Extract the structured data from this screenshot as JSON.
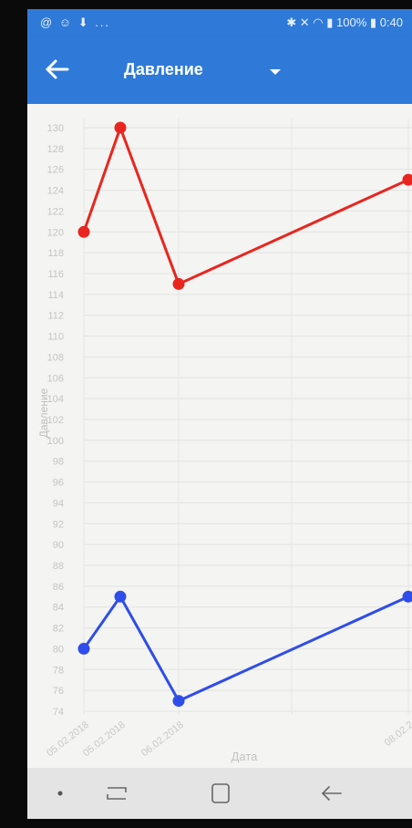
{
  "status_bar": {
    "left_icons": "@ ☺ ⬇ ...",
    "battery": "100%",
    "time": "0:40"
  },
  "app_bar": {
    "title": "Давление",
    "back_icon": "arrow-left-icon",
    "dropdown_icon": "caret-down-icon",
    "color": "#2f7ad8"
  },
  "chart_data": {
    "type": "line",
    "ylabel": "Давление",
    "xlabel": "Дата",
    "ylim": [
      73,
      131
    ],
    "yticks": [
      74,
      76,
      78,
      80,
      82,
      84,
      86,
      88,
      90,
      92,
      94,
      96,
      98,
      100,
      102,
      104,
      106,
      108,
      110,
      112,
      114,
      116,
      118,
      120,
      122,
      124,
      126,
      128,
      130
    ],
    "x_tick_labels": [
      "05.02.2018",
      "05.02.2018",
      "06.02.2018",
      "08.02.2"
    ],
    "grid": true,
    "series": [
      {
        "color": "#e8261f",
        "values": [
          120,
          130,
          115,
          125
        ]
      },
      {
        "color": "#2f4de8",
        "values": [
          80,
          85,
          75,
          85
        ]
      }
    ]
  },
  "nav_bar": {
    "buttons": [
      "dot-icon",
      "recent-apps-icon",
      "home-icon",
      "back-arrow-icon"
    ]
  }
}
